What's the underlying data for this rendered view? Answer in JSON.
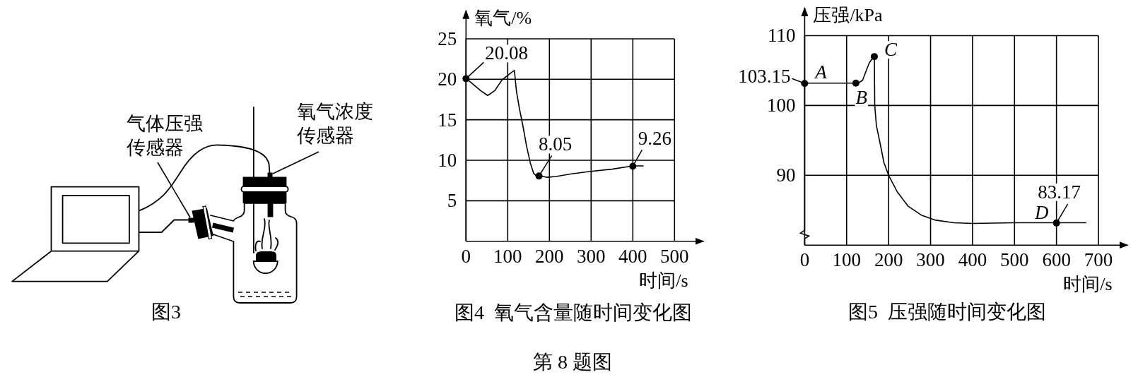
{
  "chart_data": [
    {
      "type": "other",
      "title": "图3",
      "annotations": [
        "气体压强传感器",
        "氧气浓度传感器"
      ]
    },
    {
      "type": "line",
      "title": "图4  氧气含量随时间变化图",
      "xlabel": "时间/s",
      "ylabel": "氧气/%",
      "xlim": [
        0,
        570
      ],
      "ylim": [
        0,
        28.5
      ],
      "xticks": [
        0,
        100,
        200,
        300,
        400,
        500
      ],
      "yticks": [
        5,
        10,
        15,
        20,
        25
      ],
      "grid": true,
      "series": [
        {
          "type": "line",
          "color": "#000000",
          "x": [
            0,
            12,
            35,
            52,
            69,
            86,
            103,
            116,
            121,
            128,
            137,
            145,
            154,
            162,
            168,
            175,
            193,
            216,
            250,
            295,
            350,
            400,
            425
          ],
          "values": [
            20.1,
            19.6,
            18.6,
            18.0,
            18.6,
            19.9,
            20.6,
            21.1,
            18.5,
            16.4,
            14.1,
            11.8,
            9.7,
            8.4,
            8.1,
            8.1,
            7.9,
            8.0,
            8.3,
            8.6,
            8.9,
            9.3,
            9.3
          ]
        },
        {
          "type": "scatter",
          "color": "#000000",
          "marker": "circle",
          "x": [
            0,
            175,
            400
          ],
          "values": [
            20.08,
            8.05,
            9.26
          ],
          "value_labels": [
            "20.08",
            "8.05",
            "9.26"
          ]
        }
      ],
      "annotations": [
        "第 8 题图"
      ]
    },
    {
      "type": "line",
      "title": "图5  压强随时间变化图",
      "xlabel": "时间/s",
      "ylabel": "压强/kPa",
      "xlim": [
        0,
        770
      ],
      "ylim": [
        80,
        114
      ],
      "xticks": [
        0,
        100,
        200,
        300,
        400,
        500,
        600,
        700
      ],
      "yticks": [
        90,
        100,
        110
      ],
      "grid": true,
      "series": [
        {
          "type": "line",
          "color": "#000000",
          "x": [
            0,
            122,
            130,
            138,
            148,
            154,
            160,
            166,
            167,
            171,
            180,
            189,
            200,
            221,
            246,
            278,
            310,
            355,
            400,
            500,
            600,
            670
          ],
          "values": [
            103.2,
            103.2,
            103.3,
            103.6,
            105.2,
            106.1,
            106.6,
            107,
            100,
            97.1,
            94.5,
            91.8,
            90,
            87.6,
            85.6,
            84.3,
            83.6,
            83.2,
            83.1,
            83.2,
            83.2,
            83.2
          ]
        },
        {
          "type": "scatter",
          "color": "#000000",
          "marker": "circle",
          "x": [
            0,
            122,
            166,
            600
          ],
          "values": [
            103.15,
            103.2,
            107,
            83.17
          ],
          "value_labels": [
            "103.15",
            null,
            null,
            "83.17"
          ]
        }
      ],
      "annotations": [
        {
          "text": "A",
          "x": 0,
          "y": 103.15
        },
        {
          "text": "B",
          "x": 122,
          "y": 103.2
        },
        {
          "text": "C",
          "x": 166,
          "y": 107
        },
        {
          "text": "D",
          "x": 600,
          "y": 83.17
        }
      ]
    }
  ]
}
